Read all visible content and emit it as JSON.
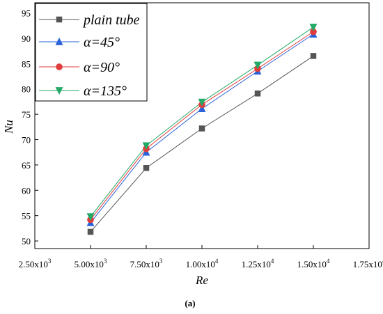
{
  "chart_data": {
    "type": "line",
    "xlabel": "Re",
    "ylabel": "Nu",
    "caption": "(a)",
    "x": [
      5000,
      7500,
      10000,
      12500,
      15000
    ],
    "xlim": [
      2500,
      17500
    ],
    "ylim": [
      48.5,
      97
    ],
    "x_ticks": [
      2500,
      5000,
      7500,
      10000,
      12500,
      15000,
      17500
    ],
    "x_tick_labels": [
      "2.50x10",
      "5.00x10",
      "7.50x10",
      "1.00x10",
      "1.25x10",
      "1.50x10",
      "1.75x10"
    ],
    "x_tick_exponents": [
      "3",
      "3",
      "3",
      "4",
      "4",
      "4",
      "4"
    ],
    "y_ticks": [
      50,
      55,
      60,
      65,
      70,
      75,
      80,
      85,
      90,
      95
    ],
    "y_tick_labels": [
      "50",
      "55",
      "60",
      "65",
      "70",
      "75",
      "80",
      "85",
      "90",
      "95"
    ],
    "legend_position": "top-left",
    "grid": false,
    "series": [
      {
        "name": "plain tube",
        "values": [
          51.8,
          64.4,
          72.2,
          79.1,
          86.5
        ],
        "color": "#555555",
        "marker": "square"
      },
      {
        "name": "α=45°",
        "values": [
          53.6,
          67.5,
          76.1,
          83.5,
          90.8
        ],
        "color": "#2a62d8",
        "marker": "triangle-up"
      },
      {
        "name": "α=90°",
        "values": [
          54.2,
          68.2,
          76.9,
          84.0,
          91.3
        ],
        "color": "#e23b3b",
        "marker": "circle"
      },
      {
        "name": "α=135°",
        "values": [
          54.8,
          68.8,
          77.4,
          84.7,
          92.2
        ],
        "color": "#22aa66",
        "marker": "triangle-down"
      }
    ]
  }
}
